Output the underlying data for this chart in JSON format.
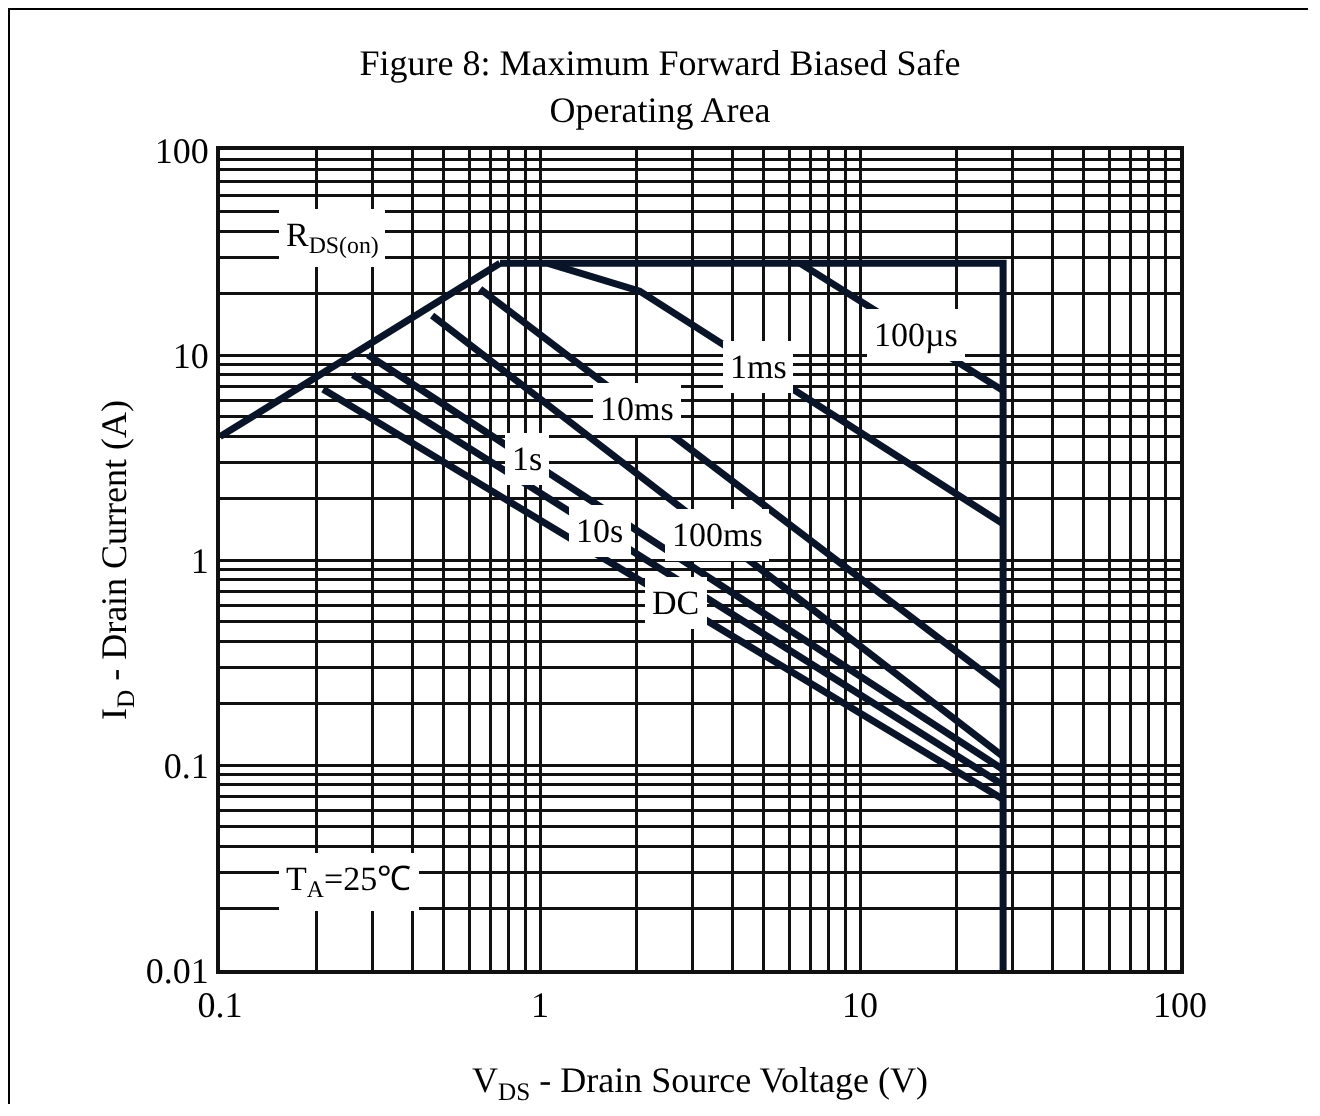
{
  "chart_data": {
    "type": "line",
    "title": "Figure 8: Maximum Forward Biased Safe Operating Area",
    "xlabel": "V$_{DS}$ - Drain Source Voltage (V)",
    "ylabel": "I$_{D}$ - Drain Current (A)",
    "log": "xy",
    "xlim": [
      0.1,
      100
    ],
    "ylim": [
      0.01,
      100
    ],
    "xticks": [
      0.1,
      1,
      10,
      100
    ],
    "yticks": [
      0.01,
      0.1,
      1,
      10,
      100
    ],
    "grid": true,
    "legend": false,
    "marker": "none",
    "line_style": "solid",
    "series": [
      {
        "color": "#0a1428",
        "x": [
          0.1,
          0.75
        ],
        "values": [
          4,
          28
        ]
      },
      {
        "color": "#0a1428",
        "x": [
          0.75,
          28,
          28
        ],
        "values": [
          28,
          28,
          0.01
        ]
      },
      {
        "name": "100µs",
        "color": "#0a1428",
        "x": [
          6.5,
          28
        ],
        "values": [
          28,
          6.7
        ]
      },
      {
        "name": "1ms",
        "color": "#0a1428",
        "x": [
          1.06,
          2.05,
          28
        ],
        "values": [
          28,
          20.5,
          1.5
        ]
      },
      {
        "name": "10ms",
        "color": "#0a1428",
        "x": [
          0.65,
          28
        ],
        "values": [
          21,
          0.24
        ]
      },
      {
        "name": "100ms",
        "color": "#0a1428",
        "x": [
          0.46,
          28
        ],
        "values": [
          15.6,
          0.11
        ]
      },
      {
        "name": "1s",
        "color": "#0a1428",
        "x": [
          0.29,
          28
        ],
        "values": [
          10,
          0.095
        ]
      },
      {
        "name": "10s",
        "color": "#0a1428",
        "x": [
          0.26,
          28
        ],
        "values": [
          8,
          0.08
        ]
      },
      {
        "name": "DC",
        "color": "#0a1428",
        "x": [
          0.21,
          28
        ],
        "values": [
          6.8,
          0.068
        ]
      }
    ],
    "annotations": [
      "R$_{DS(on)}$",
      "T$_{A}$=25℃"
    ]
  }
}
